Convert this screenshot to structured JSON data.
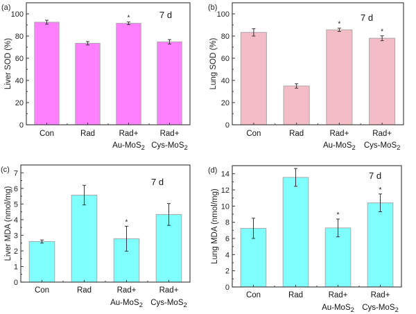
{
  "chart_data": [
    {
      "type": "bar",
      "panel_label": "(a)",
      "title": "",
      "annotation": "7 d",
      "xlabel": "",
      "ylabel": "Liver SOD (%)",
      "ylim": [
        0,
        110
      ],
      "yticks": [
        0,
        20,
        40,
        60,
        80,
        100
      ],
      "categories": [
        {
          "line1": "Con",
          "line2": ""
        },
        {
          "line1": "Rad",
          "line2": ""
        },
        {
          "line1": "Rad+",
          "line2": "Au-MoS",
          "sub": "2"
        },
        {
          "line1": "Rad+",
          "line2": "Cys-MoS",
          "sub": "2"
        }
      ],
      "values": [
        92.5,
        73.5,
        91.5,
        74.8
      ],
      "errors": [
        1.8,
        1.5,
        1.2,
        2.0
      ],
      "significance": [
        "",
        "",
        "*",
        ""
      ],
      "bar_color": "#ff80ff"
    },
    {
      "type": "bar",
      "panel_label": "(b)",
      "title": "",
      "annotation": "7 d",
      "xlabel": "",
      "ylabel": "Lung SOD (%)",
      "ylim": [
        0,
        110
      ],
      "yticks": [
        0,
        20,
        40,
        60,
        80,
        100
      ],
      "categories": [
        {
          "line1": "Con",
          "line2": ""
        },
        {
          "line1": "Rad",
          "line2": ""
        },
        {
          "line1": "Rad+",
          "line2": "Au-MoS",
          "sub": "2"
        },
        {
          "line1": "Rad+",
          "line2": "Cys-MoS",
          "sub": "2"
        }
      ],
      "values": [
        83.3,
        35.0,
        85.6,
        78.0
      ],
      "errors": [
        3.3,
        2.0,
        1.5,
        2.2
      ],
      "significance": [
        "",
        "",
        "*",
        "*"
      ],
      "bar_color": "#f4bcc4"
    },
    {
      "type": "bar",
      "panel_label": "(c)",
      "title": "",
      "annotation": "7 d",
      "xlabel": "",
      "ylabel": "Liver MDA (nmol/mg)",
      "ylim": [
        0,
        7.5
      ],
      "yticks": [
        0,
        1,
        2,
        3,
        4,
        5,
        6,
        7
      ],
      "categories": [
        {
          "line1": "Con",
          "line2": ""
        },
        {
          "line1": "Rad",
          "line2": ""
        },
        {
          "line1": "Rad+",
          "line2": "Au-MoS",
          "sub": "2"
        },
        {
          "line1": "Rad+",
          "line2": "Cys-MoS",
          "sub": "2"
        }
      ],
      "values": [
        2.6,
        5.57,
        2.78,
        4.33
      ],
      "errors": [
        0.1,
        0.63,
        0.8,
        0.7
      ],
      "significance": [
        "",
        "",
        "*",
        ""
      ],
      "bar_color": "#80ffff"
    },
    {
      "type": "bar",
      "panel_label": "(d)",
      "title": "",
      "annotation": "7 d",
      "xlabel": "",
      "ylabel": "Lung MDA (nmol/mg)",
      "ylim": [
        0,
        15
      ],
      "yticks": [
        0,
        2,
        4,
        6,
        8,
        10,
        12,
        14
      ],
      "categories": [
        {
          "line1": "Con",
          "line2": ""
        },
        {
          "line1": "Rad",
          "line2": ""
        },
        {
          "line1": "Rad+",
          "line2": "Au-MoS",
          "sub": "2"
        },
        {
          "line1": "Rad+",
          "line2": "Cys-MoS",
          "sub": "2"
        }
      ],
      "values": [
        7.25,
        13.55,
        7.3,
        10.4
      ],
      "errors": [
        1.25,
        1.1,
        1.1,
        1.1
      ],
      "significance": [
        "",
        "",
        "*",
        "*"
      ],
      "bar_color": "#80ffff"
    }
  ]
}
